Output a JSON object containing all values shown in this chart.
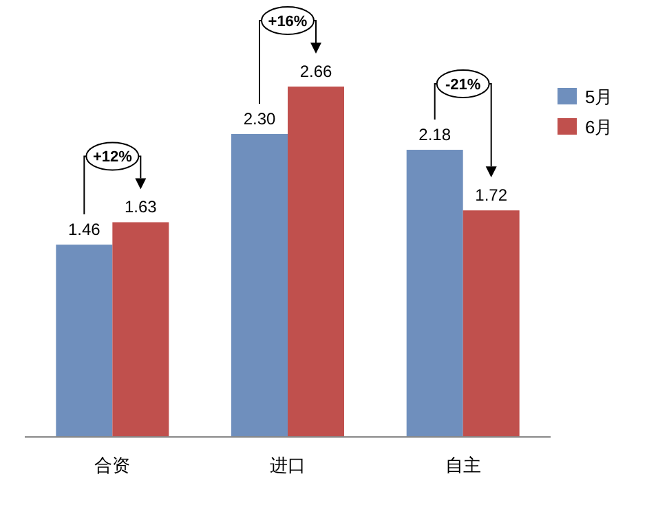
{
  "chart_data": {
    "type": "bar",
    "categories": [
      "合资",
      "进口",
      "自主"
    ],
    "series": [
      {
        "name": "5月",
        "color": "#6f8fbd",
        "values": [
          1.46,
          2.3,
          2.18
        ],
        "value_labels": [
          "1.46",
          "2.30",
          "2.18"
        ]
      },
      {
        "name": "6月",
        "color": "#c0504d",
        "values": [
          1.63,
          2.66,
          1.72
        ],
        "value_labels": [
          "1.63",
          "2.66",
          "1.72"
        ]
      }
    ],
    "legend": "right",
    "annotations": [
      "+12%",
      "+16%",
      "-21%"
    ]
  }
}
